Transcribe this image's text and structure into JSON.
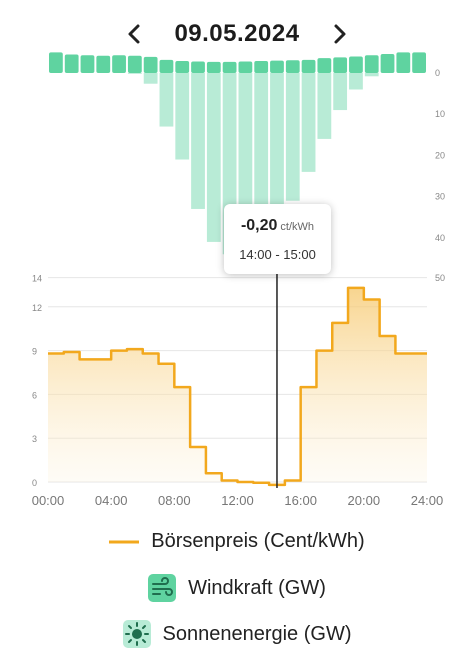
{
  "header": {
    "date": "09.05.2024"
  },
  "tooltip": {
    "price": "-0,20",
    "unit": "ct/kWh",
    "time": "14:00 - 15:00"
  },
  "legend": {
    "price": "Börsenpreis (Cent/kWh)",
    "wind": "Windkraft (GW)",
    "solar": "Sonnenenergie (GW)"
  },
  "colors": {
    "price_line": "#f2a81d",
    "wind": "#5fd3a0",
    "solar": "#b8ebd6",
    "cursor": "#222222"
  },
  "chart_data": {
    "type": "line",
    "x_ticks": [
      "00:00",
      "04:00",
      "08:00",
      "12:00",
      "16:00",
      "20:00",
      "24:00"
    ],
    "price_ticks": [
      "0",
      "3",
      "6",
      "9",
      "12",
      "14"
    ],
    "energy_ticks": [
      "0",
      "10",
      "20",
      "30",
      "40",
      "50"
    ],
    "hours": [
      0,
      1,
      2,
      3,
      4,
      5,
      6,
      7,
      8,
      9,
      10,
      11,
      12,
      13,
      14,
      15,
      16,
      17,
      18,
      19,
      20,
      21,
      22,
      23
    ],
    "price_series": {
      "values": [
        8.8,
        8.9,
        8.4,
        8.4,
        9.0,
        9.1,
        8.8,
        8.1,
        6.5,
        2.4,
        0.6,
        0.1,
        0.0,
        -0.05,
        -0.2,
        0.1,
        6.5,
        9.0,
        10.9,
        13.3,
        12.5,
        10.0,
        8.8,
        8.8
      ]
    },
    "wind_series": {
      "values": [
        5,
        4.5,
        4.3,
        4.2,
        4.3,
        4.2,
        3.9,
        3.2,
        2.9,
        2.8,
        2.7,
        2.7,
        2.8,
        2.9,
        3.0,
        3.1,
        3.2,
        3.6,
        3.8,
        4.0,
        4.3,
        4.6,
        5.0,
        5.0
      ]
    },
    "solar_series": {
      "values": [
        0,
        0,
        0,
        0,
        0,
        0.2,
        2.6,
        13,
        21,
        33,
        41,
        44,
        45,
        44,
        40,
        31,
        24,
        16,
        9,
        4,
        0.8,
        0,
        0,
        0
      ]
    },
    "selected_hour": 14,
    "ylim_price": [
      0,
      14
    ],
    "ylim_energy": [
      0,
      50
    ]
  }
}
